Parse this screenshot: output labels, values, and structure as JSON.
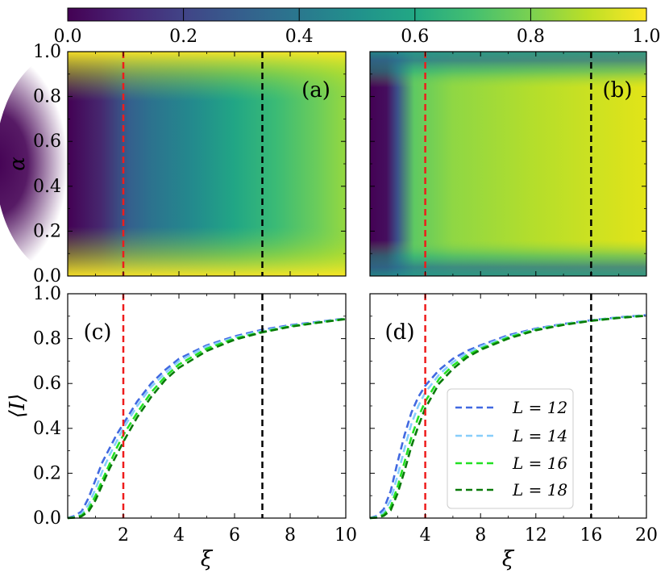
{
  "colorbar": {
    "ticks": [
      "0.0",
      "0.2",
      "0.4",
      "0.6",
      "0.8",
      "1.0"
    ],
    "tick_values": [
      0.0,
      0.2,
      0.4,
      0.6,
      0.8,
      1.0
    ],
    "range": [
      0.0,
      1.0
    ],
    "colormap": "viridis"
  },
  "chart_data": [
    {
      "id": "a",
      "type": "heatmap",
      "label": "(a)",
      "ylabel": "α",
      "xlim": [
        0,
        10
      ],
      "ylim": [
        0,
        1
      ],
      "yticks": [
        "0.0",
        "0.2",
        "0.4",
        "0.6",
        "0.8",
        "1.0"
      ],
      "ytick_values": [
        0.0,
        0.2,
        0.4,
        0.6,
        0.8,
        1.0
      ],
      "vlines": [
        {
          "x": 2,
          "color": "#ee1c1c"
        },
        {
          "x": 7,
          "color": "#000000"
        }
      ]
    },
    {
      "id": "b",
      "type": "heatmap",
      "label": "(b)",
      "xlim": [
        0,
        20
      ],
      "ylim": [
        0,
        1
      ],
      "vlines": [
        {
          "x": 4,
          "color": "#ee1c1c"
        },
        {
          "x": 16,
          "color": "#000000"
        }
      ]
    },
    {
      "id": "c",
      "type": "line",
      "label": "(c)",
      "xlabel": "ξ",
      "ylabel": "⟨I⟩",
      "xlim": [
        0,
        10
      ],
      "ylim": [
        0,
        1
      ],
      "xticks": [
        "2",
        "4",
        "6",
        "8",
        "10"
      ],
      "xtick_values": [
        2,
        4,
        6,
        8,
        10
      ],
      "yticks": [
        "0.0",
        "0.2",
        "0.4",
        "0.6",
        "0.8",
        "1.0"
      ],
      "ytick_values": [
        0.0,
        0.2,
        0.4,
        0.6,
        0.8,
        1.0
      ],
      "vlines": [
        {
          "x": 2,
          "color": "#ee1c1c"
        },
        {
          "x": 7,
          "color": "#000000"
        }
      ],
      "x": [
        0,
        0.25,
        0.5,
        0.75,
        1,
        1.25,
        1.5,
        1.75,
        2,
        2.5,
        3,
        3.5,
        4,
        5,
        6,
        7,
        8,
        9,
        10
      ],
      "series": [
        {
          "name": "L = 12",
          "color": "#4169e1",
          "values": [
            0,
            0.01,
            0.03,
            0.09,
            0.17,
            0.25,
            0.31,
            0.37,
            0.42,
            0.52,
            0.6,
            0.66,
            0.71,
            0.77,
            0.81,
            0.84,
            0.86,
            0.875,
            0.89
          ]
        },
        {
          "name": "L = 14",
          "color": "#87cefa",
          "values": [
            0,
            0.005,
            0.02,
            0.06,
            0.13,
            0.21,
            0.28,
            0.34,
            0.4,
            0.5,
            0.585,
            0.645,
            0.7,
            0.765,
            0.805,
            0.835,
            0.857,
            0.873,
            0.888
          ]
        },
        {
          "name": "L = 16",
          "color": "#22e022",
          "values": [
            0,
            0.003,
            0.012,
            0.04,
            0.1,
            0.17,
            0.24,
            0.31,
            0.37,
            0.47,
            0.56,
            0.63,
            0.685,
            0.755,
            0.8,
            0.83,
            0.855,
            0.872,
            0.888
          ]
        },
        {
          "name": "L = 18",
          "color": "#0a7a0a",
          "values": [
            0,
            0.002,
            0.008,
            0.03,
            0.08,
            0.15,
            0.22,
            0.28,
            0.34,
            0.45,
            0.54,
            0.615,
            0.67,
            0.745,
            0.795,
            0.828,
            0.853,
            0.871,
            0.887
          ]
        }
      ]
    },
    {
      "id": "d",
      "type": "line",
      "label": "(d)",
      "xlabel": "ξ",
      "xlim": [
        0,
        20
      ],
      "ylim": [
        0,
        1
      ],
      "xticks": [
        "4",
        "8",
        "12",
        "16",
        "20"
      ],
      "xtick_values": [
        4,
        8,
        12,
        16,
        20
      ],
      "vlines": [
        {
          "x": 4,
          "color": "#ee1c1c"
        },
        {
          "x": 16,
          "color": "#000000"
        }
      ],
      "legend": "center-right",
      "x": [
        0,
        0.5,
        1,
        1.5,
        2,
        2.5,
        3,
        3.5,
        4,
        5,
        6,
        7,
        8,
        10,
        12,
        14,
        16,
        18,
        20
      ],
      "series": [
        {
          "name": "L = 12",
          "color": "#4169e1",
          "values": [
            0,
            0.01,
            0.04,
            0.12,
            0.25,
            0.37,
            0.47,
            0.54,
            0.59,
            0.66,
            0.71,
            0.745,
            0.77,
            0.815,
            0.845,
            0.866,
            0.882,
            0.895,
            0.905
          ]
        },
        {
          "name": "L = 14",
          "color": "#87cefa",
          "values": [
            0,
            0.006,
            0.025,
            0.08,
            0.19,
            0.31,
            0.42,
            0.5,
            0.56,
            0.64,
            0.695,
            0.735,
            0.765,
            0.81,
            0.842,
            0.865,
            0.881,
            0.894,
            0.904
          ]
        },
        {
          "name": "L = 16",
          "color": "#22e022",
          "values": [
            0,
            0.003,
            0.015,
            0.05,
            0.14,
            0.25,
            0.36,
            0.45,
            0.52,
            0.62,
            0.68,
            0.725,
            0.755,
            0.805,
            0.84,
            0.863,
            0.88,
            0.893,
            0.903
          ]
        },
        {
          "name": "L = 18",
          "color": "#0a7a0a",
          "values": [
            0,
            0.002,
            0.01,
            0.035,
            0.11,
            0.21,
            0.32,
            0.41,
            0.49,
            0.6,
            0.665,
            0.715,
            0.75,
            0.8,
            0.837,
            0.861,
            0.879,
            0.892,
            0.902
          ]
        }
      ]
    }
  ],
  "legend": {
    "entries": [
      "L = 12",
      "L = 14",
      "L = 16",
      "L = 18"
    ]
  }
}
